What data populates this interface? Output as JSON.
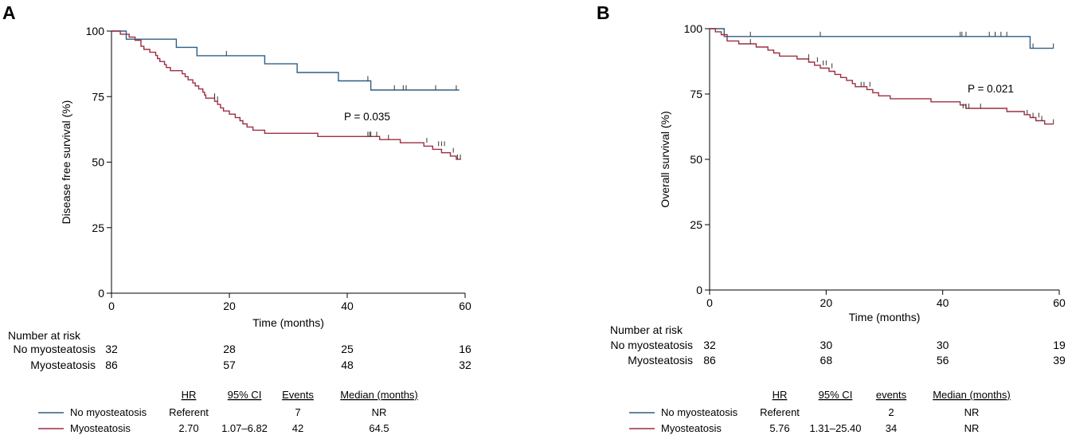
{
  "chart_data": [
    {
      "panel": "A",
      "type": "line",
      "subtype": "kaplan-meier",
      "ylabel": "Disease free survival (%)",
      "xlabel": "Time (months)",
      "xlim": [
        0,
        60
      ],
      "ylim": [
        0,
        100
      ],
      "xticks": [
        0,
        20,
        40,
        60
      ],
      "yticks": [
        0,
        25,
        50,
        75,
        100
      ],
      "p_value_text": "P = 0.035",
      "series": [
        {
          "name": "No myosteatosis",
          "color": "#2e5f86",
          "steps": [
            [
              0,
              100
            ],
            [
              2.5,
              96.9
            ],
            [
              11,
              93.8
            ],
            [
              14.5,
              90.6
            ],
            [
              26,
              87.5
            ],
            [
              31.5,
              84.2
            ],
            [
              38.5,
              81
            ],
            [
              44,
              77.5
            ],
            [
              59,
              77.5
            ]
          ],
          "censor": [
            [
              19.5,
              90.6
            ],
            [
              43.5,
              81
            ],
            [
              48,
              77.5
            ],
            [
              49.5,
              77.5
            ],
            [
              50,
              77.5
            ],
            [
              55,
              77.5
            ],
            [
              58.5,
              77.5
            ]
          ]
        },
        {
          "name": "Myosteatosis",
          "color": "#9c2f42",
          "steps": [
            [
              0,
              100
            ],
            [
              1.5,
              98.8
            ],
            [
              3,
              97.7
            ],
            [
              4,
              96.5
            ],
            [
              5,
              94.2
            ],
            [
              5.5,
              93
            ],
            [
              6.5,
              91.9
            ],
            [
              7.5,
              90.7
            ],
            [
              7.8,
              89.5
            ],
            [
              8.2,
              88.4
            ],
            [
              9,
              87.2
            ],
            [
              9.3,
              86.1
            ],
            [
              10,
              84.9
            ],
            [
              12,
              83.7
            ],
            [
              12.5,
              82.6
            ],
            [
              13,
              81.4
            ],
            [
              13.8,
              80.2
            ],
            [
              14.2,
              79.1
            ],
            [
              14.8,
              77.9
            ],
            [
              15.5,
              76.7
            ],
            [
              15.8,
              75.6
            ],
            [
              16,
              74.4
            ],
            [
              17.5,
              73.2
            ],
            [
              18,
              72
            ],
            [
              18.5,
              70.7
            ],
            [
              19,
              69.5
            ],
            [
              20,
              68.3
            ],
            [
              21,
              67
            ],
            [
              21.8,
              65.8
            ],
            [
              22.3,
              64.6
            ],
            [
              23,
              63.4
            ],
            [
              24,
              62.2
            ],
            [
              26,
              61
            ],
            [
              35,
              59.8
            ],
            [
              45.5,
              58.6
            ],
            [
              49,
              57.4
            ],
            [
              53,
              56.1
            ],
            [
              54.5,
              54.9
            ],
            [
              56,
              53.6
            ],
            [
              57.5,
              52.3
            ],
            [
              58.5,
              51.1
            ],
            [
              59.3,
              51.1
            ]
          ],
          "censor": [
            [
              17.5,
              74.4
            ],
            [
              18,
              73.2
            ],
            [
              43.5,
              59.8
            ],
            [
              43.8,
              59.8
            ],
            [
              44,
              59.8
            ],
            [
              45,
              59.8
            ],
            [
              47,
              58.6
            ],
            [
              53.5,
              57.4
            ],
            [
              55.5,
              56.1
            ],
            [
              56,
              56.1
            ],
            [
              56.5,
              56.1
            ],
            [
              58,
              53.6
            ],
            [
              58.7,
              51.1
            ],
            [
              59.2,
              51.1
            ]
          ]
        }
      ],
      "risk_table": {
        "title": "Number at risk",
        "rows": [
          {
            "label": "No myosteatosis",
            "values": [
              "32",
              "28",
              "25",
              "16"
            ]
          },
          {
            "label": "Myosteatosis",
            "values": [
              "86",
              "57",
              "48",
              "32"
            ]
          }
        ]
      },
      "summary_table": {
        "headers": [
          "HR",
          "95% CI",
          "Events",
          "Median (months)"
        ],
        "rows": [
          {
            "label": "No myosteatosis",
            "hr": "Referent",
            "ci": "",
            "events": "7",
            "median": "NR"
          },
          {
            "label": "Myosteatosis",
            "hr": "2.70",
            "ci": "1.07–6.82",
            "events": "42",
            "median": "64.5"
          }
        ]
      }
    },
    {
      "panel": "B",
      "type": "line",
      "subtype": "kaplan-meier",
      "ylabel": "Overall survival (%)",
      "xlabel": "Time (months)",
      "xlim": [
        0,
        60
      ],
      "ylim": [
        0,
        100
      ],
      "xticks": [
        0,
        20,
        40,
        60
      ],
      "yticks": [
        0,
        25,
        50,
        75,
        100
      ],
      "p_value_text": "P = 0.021",
      "series": [
        {
          "name": "No myosteatosis",
          "color": "#2e5f86",
          "steps": [
            [
              0,
              100
            ],
            [
              2.5,
              97
            ],
            [
              55,
              92.5
            ],
            [
              59,
              92.5
            ]
          ],
          "censor": [
            [
              7,
              97
            ],
            [
              19,
              97
            ],
            [
              43,
              97
            ],
            [
              43.3,
              97
            ],
            [
              44,
              97
            ],
            [
              48,
              97
            ],
            [
              49,
              97
            ],
            [
              50,
              97
            ],
            [
              51,
              97
            ],
            [
              55.5,
              92.5
            ],
            [
              59,
              92.5
            ]
          ]
        },
        {
          "name": "Myosteatosis",
          "color": "#9c2f42",
          "steps": [
            [
              0,
              100
            ],
            [
              1,
              98.8
            ],
            [
              2,
              97.7
            ],
            [
              3,
              95.3
            ],
            [
              5,
              94.2
            ],
            [
              8,
              93
            ],
            [
              10,
              91.8
            ],
            [
              11,
              90.7
            ],
            [
              12,
              89.5
            ],
            [
              15,
              88.4
            ],
            [
              17,
              87.2
            ],
            [
              18,
              86
            ],
            [
              19,
              84.9
            ],
            [
              20.5,
              83.7
            ],
            [
              21.5,
              82.5
            ],
            [
              22.5,
              81.3
            ],
            [
              23.5,
              80.2
            ],
            [
              24.5,
              79
            ],
            [
              25,
              77.8
            ],
            [
              27,
              76.7
            ],
            [
              28,
              75.5
            ],
            [
              29,
              74.3
            ],
            [
              31,
              73.2
            ],
            [
              38,
              72
            ],
            [
              43,
              70.8
            ],
            [
              44,
              69.5
            ],
            [
              51,
              68.3
            ],
            [
              54,
              67.1
            ],
            [
              55,
              66
            ],
            [
              56,
              64.8
            ],
            [
              57.5,
              63.5
            ],
            [
              59,
              63.5
            ]
          ],
          "censor": [
            [
              7,
              94.2
            ],
            [
              17,
              88.4
            ],
            [
              18.5,
              87.2
            ],
            [
              19.5,
              86
            ],
            [
              20,
              86
            ],
            [
              21,
              84.9
            ],
            [
              26,
              77.8
            ],
            [
              26.5,
              77.8
            ],
            [
              27.5,
              77.8
            ],
            [
              43.5,
              69.5
            ],
            [
              44,
              69.5
            ],
            [
              44.5,
              69.5
            ],
            [
              46.5,
              69.5
            ],
            [
              54.5,
              67.1
            ],
            [
              55.5,
              66
            ],
            [
              56.5,
              66
            ],
            [
              57,
              64.8
            ],
            [
              59,
              63.5
            ]
          ]
        }
      ],
      "risk_table": {
        "title": "Number at risk",
        "rows": [
          {
            "label": "No myosteatosis",
            "values": [
              "32",
              "30",
              "30",
              "19"
            ]
          },
          {
            "label": "Myosteatosis",
            "values": [
              "86",
              "68",
              "56",
              "39"
            ]
          }
        ]
      },
      "summary_table": {
        "headers": [
          "HR",
          "95% CI",
          "events",
          "Median (months)"
        ],
        "rows": [
          {
            "label": "No myosteatosis",
            "hr": "Referent",
            "ci": "",
            "events": "2",
            "median": "NR"
          },
          {
            "label": "Myosteatosis",
            "hr": "5.76",
            "ci": "1.31–25.40",
            "events": "34",
            "median": "NR"
          }
        ]
      }
    }
  ]
}
